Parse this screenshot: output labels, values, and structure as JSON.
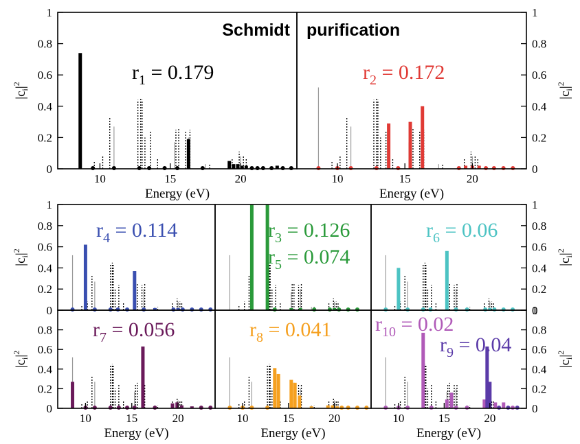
{
  "colors": {
    "black": "#000000",
    "red": "#e03a35",
    "blue": "#3a4fb0",
    "green": "#2a9a3a",
    "cyan": "#4cc3c3",
    "maroon": "#6a1a5a",
    "orange": "#f5a020",
    "magenta": "#b05ab8",
    "purple": "#5a3aa8"
  },
  "headers": {
    "left": "Schmidt",
    "right": "purification"
  },
  "reference_lines": {
    "gray": [
      8.6,
      11.0,
      15.3,
      16.3,
      17.5,
      20.0
    ],
    "gray_heights": [
      0.52,
      0.27,
      0.17,
      0.2,
      0.03,
      0.08
    ],
    "dotted": [
      9.6,
      10.2,
      10.7,
      12.7,
      12.9,
      13.0,
      13.2,
      13.6,
      14.1,
      15.4,
      15.6,
      16.1,
      16.4,
      17.8,
      19.4,
      19.9,
      20.2,
      20.4
    ],
    "dotted_heights": [
      0.05,
      0.08,
      0.33,
      0.44,
      0.45,
      0.44,
      0.2,
      0.24,
      0.07,
      0.25,
      0.26,
      0.24,
      0.25,
      0.03,
      0.07,
      0.11,
      0.08,
      0.07
    ]
  },
  "chart_data": [
    {
      "id": "p_schmidt",
      "type": "bar",
      "xlabel": "Energy (eV)",
      "ylabel": "|c_i|^2",
      "xlim": [
        7,
        24
      ],
      "ylim": [
        0,
        1
      ],
      "xticks": [
        10,
        15,
        20
      ],
      "yticks": [
        0,
        0.2,
        0.4,
        0.6,
        0.8,
        1
      ],
      "series": [
        {
          "annotation": [
            "r",
            "1",
            " = 0.179"
          ],
          "color": "black",
          "x": [
            8.6,
            9.5,
            11.0,
            12.8,
            13.5,
            14.6,
            15.5,
            16.3,
            17.3,
            19.2,
            19.5,
            19.8,
            20.1,
            20.4,
            20.8,
            21.2,
            21.6,
            22.2,
            22.6,
            23.0,
            23.6
          ],
          "y": [
            0.74,
            0.01,
            0.01,
            0.01,
            0.01,
            0.01,
            0.01,
            0.19,
            0.01,
            0.05,
            0.03,
            0.03,
            0.02,
            0.02,
            0.01,
            0.01,
            0.01,
            0.01,
            0.02,
            0.01,
            0.01
          ]
        }
      ]
    },
    {
      "id": "p_purif",
      "type": "bar",
      "xlabel": "Energy (eV)",
      "ylabel": "|c_i|^2",
      "xlim": [
        7,
        24
      ],
      "ylim": [
        0,
        1
      ],
      "xticks": [
        10,
        15,
        20
      ],
      "yticks": [
        0,
        0.2,
        0.4,
        0.6,
        0.8,
        1
      ],
      "series": [
        {
          "annotation": [
            "r",
            "2",
            " = 0.172"
          ],
          "color": "red",
          "x": [
            8.6,
            10.0,
            11.0,
            12.9,
            13.8,
            14.5,
            15.4,
            16.3,
            19.0,
            19.5,
            20.0,
            20.5,
            21.0,
            21.6,
            22.3,
            23.0
          ],
          "y": [
            0.01,
            0.01,
            0.01,
            0.01,
            0.29,
            0.01,
            0.3,
            0.4,
            0.01,
            0.02,
            0.02,
            0.02,
            0.01,
            0.01,
            0.01,
            0.01
          ]
        }
      ]
    },
    {
      "id": "p_b1",
      "type": "bar",
      "xlabel": "",
      "ylabel": "|c_i|^2",
      "xlim": [
        7,
        24
      ],
      "ylim": [
        0,
        1
      ],
      "xticks": [],
      "yticks": [
        0,
        0.2,
        0.4,
        0.6,
        0.8,
        1
      ],
      "series": [
        {
          "annotation": [
            "r",
            "4",
            " = 0.114"
          ],
          "color": "blue",
          "x": [
            8.6,
            10.0,
            11.0,
            12.7,
            13.5,
            14.5,
            15.3,
            16.3,
            17.5,
            19.5,
            20.0,
            20.5,
            21.5,
            22.5,
            23.5
          ],
          "y": [
            0.01,
            0.62,
            0.01,
            0.01,
            0.01,
            0.01,
            0.37,
            0.01,
            0.02,
            0.01,
            0.02,
            0.01,
            0.01,
            0.01,
            0.01
          ]
        }
      ]
    },
    {
      "id": "p_b2",
      "type": "bar",
      "xlabel": "",
      "ylabel": "",
      "xlim": [
        7,
        24
      ],
      "ylim": [
        0,
        1
      ],
      "xticks": [],
      "yticks": [],
      "series": [
        {
          "annotation": [
            "r",
            "3",
            " = 0.126"
          ],
          "color": "green",
          "x": [
            11.0,
            12.7,
            13.5,
            15.3,
            16.3,
            17.8,
            19.5,
            20.0,
            20.5,
            21.5,
            22.5
          ],
          "y": [
            1.0,
            1.0,
            0.01,
            0.02,
            0.02,
            0.01,
            0.01,
            0.02,
            0.01,
            0.01,
            0.01
          ]
        },
        {
          "annotation": [
            "r",
            "5",
            " = 0.074"
          ],
          "color": "green",
          "x": [],
          "y": []
        }
      ]
    },
    {
      "id": "p_b3",
      "type": "bar",
      "xlabel": "",
      "ylabel": "|c_i|^2",
      "xlim": [
        7,
        24
      ],
      "ylim": [
        0,
        1
      ],
      "xticks": [],
      "yticks": [
        0,
        0.2,
        0.4,
        0.6,
        0.8,
        1
      ],
      "series": [
        {
          "annotation": [
            "r",
            "6",
            " = 0.06"
          ],
          "color": "cyan",
          "x": [
            8.6,
            10.0,
            11.0,
            12.7,
            13.5,
            15.3,
            16.3,
            17.5,
            19.5,
            20.0,
            20.5,
            21.5,
            22.5
          ],
          "y": [
            0.01,
            0.4,
            0.01,
            0.01,
            0.01,
            0.56,
            0.01,
            0.01,
            0.01,
            0.02,
            0.01,
            0.01,
            0.01
          ]
        }
      ]
    },
    {
      "id": "p_c1",
      "type": "bar",
      "xlabel": "Energy (eV)",
      "ylabel": "|c_i|^2",
      "xlim": [
        7,
        24
      ],
      "ylim": [
        0,
        1
      ],
      "xticks": [
        10,
        15,
        20
      ],
      "yticks": [
        0,
        0.2,
        0.4,
        0.6,
        0.8
      ],
      "series": [
        {
          "annotation": [
            "r",
            "7",
            " = 0.056"
          ],
          "color": "maroon",
          "x": [
            8.6,
            10.0,
            11.0,
            12.7,
            13.6,
            14.5,
            15.3,
            16.2,
            17.5,
            19.4,
            19.9,
            20.4,
            21.5,
            22.5,
            23.5
          ],
          "y": [
            0.27,
            0.01,
            0.01,
            0.01,
            0.01,
            0.01,
            0.01,
            0.63,
            0.01,
            0.05,
            0.06,
            0.03,
            0.02,
            0.01,
            0.01
          ]
        }
      ]
    },
    {
      "id": "p_c2",
      "type": "bar",
      "xlabel": "Energy (eV)",
      "ylabel": "",
      "xlim": [
        7,
        24
      ],
      "ylim": [
        0,
        1
      ],
      "xticks": [
        10,
        15,
        20
      ],
      "yticks": [],
      "series": [
        {
          "annotation": [
            "r",
            "8",
            " = 0.041"
          ],
          "color": "orange",
          "x": [
            8.6,
            10.0,
            11.0,
            12.7,
            13.5,
            13.9,
            15.3,
            15.7,
            16.2,
            17.5,
            19.3,
            19.8,
            20.3,
            20.8,
            21.5,
            22.5,
            23.5
          ],
          "y": [
            0.01,
            0.01,
            0.01,
            0.01,
            0.41,
            0.35,
            0.29,
            0.26,
            0.13,
            0.02,
            0.03,
            0.03,
            0.02,
            0.01,
            0.01,
            0.01,
            0.01
          ]
        }
      ]
    },
    {
      "id": "p_c3",
      "type": "bar",
      "xlabel": "Energy (eV)",
      "ylabel": "|c_i|^2",
      "xlim": [
        7,
        24
      ],
      "ylim": [
        0,
        1
      ],
      "xticks": [
        10,
        15,
        20
      ],
      "yticks": [
        0,
        0.2,
        0.4,
        0.6,
        0.8,
        1
      ],
      "series": [
        {
          "annotation": [
            "r",
            "10",
            " = 0.02"
          ],
          "color": "magenta",
          "x": [
            8.6,
            10.0,
            11.0,
            12.7,
            13.6,
            15.3,
            15.8,
            16.3,
            17.5,
            19.4,
            20.6,
            21.5,
            22.5
          ],
          "y": [
            0.01,
            0.01,
            0.01,
            0.77,
            0.01,
            0.09,
            0.16,
            0.01,
            0.01,
            0.09,
            0.06,
            0.06,
            0.01
          ]
        },
        {
          "annotation": [
            "r",
            "9",
            " = 0.04"
          ],
          "color": "purple",
          "x": [
            19.7,
            20.0,
            21.0,
            22.0,
            23.0
          ],
          "y": [
            0.63,
            0.27,
            0.01,
            0.01,
            0.01
          ]
        }
      ]
    }
  ]
}
